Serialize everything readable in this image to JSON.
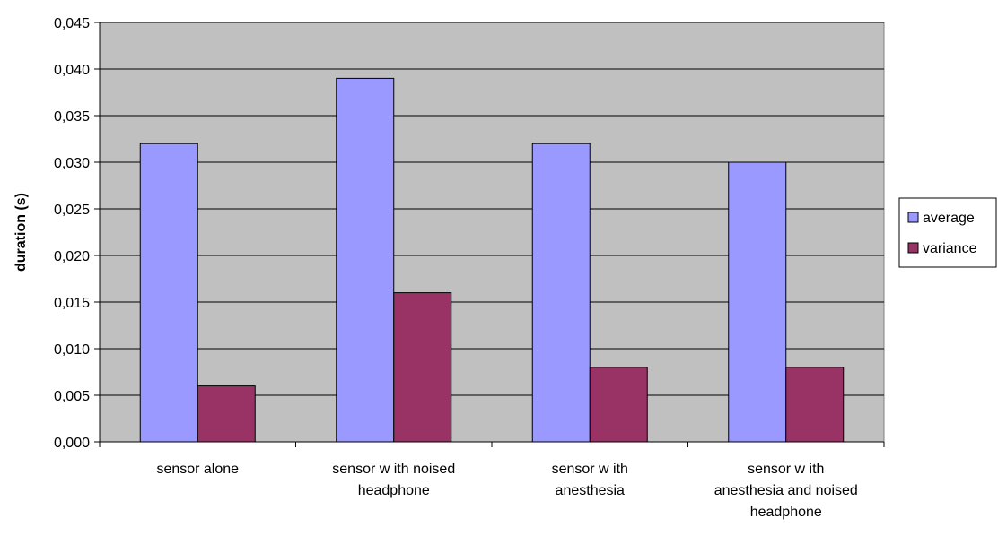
{
  "chart_data": {
    "type": "bar",
    "title": "",
    "xlabel": "",
    "ylabel": "duration (s)",
    "ylim": [
      0,
      0.045
    ],
    "yticks": [
      "0,000",
      "0,005",
      "0,010",
      "0,015",
      "0,020",
      "0,025",
      "0,030",
      "0,035",
      "0,040",
      "0,045"
    ],
    "ytick_values": [
      0,
      0.005,
      0.01,
      0.015,
      0.02,
      0.025,
      0.03,
      0.035,
      0.04,
      0.045
    ],
    "categories": [
      [
        "sensor alone"
      ],
      [
        "sensor w ith noised",
        "headphone"
      ],
      [
        "sensor w ith",
        "anesthesia"
      ],
      [
        "sensor w ith",
        "anesthesia and noised",
        "headphone"
      ]
    ],
    "series": [
      {
        "name": "average",
        "color": "#9999ff",
        "values": [
          0.032,
          0.039,
          0.032,
          0.03
        ]
      },
      {
        "name": "variance",
        "color": "#993366",
        "values": [
          0.006,
          0.016,
          0.008,
          0.008
        ]
      }
    ],
    "grid": true,
    "plot_background": "#c0c0c0",
    "legend_position": "right"
  }
}
